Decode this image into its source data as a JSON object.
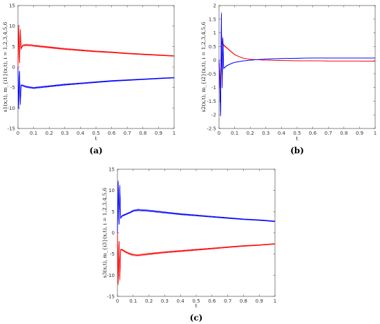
{
  "colors": {
    "series1": "#ff0000",
    "series2": "#0000ff",
    "axis": "#333333"
  },
  "chart_data": [
    {
      "type": "line",
      "caption": "(a)",
      "xlabel": "t",
      "ylabel": "s1(x,t), m_{i1}(x,t), i = 1,2,3,4,5,6",
      "xlim": [
        0,
        1
      ],
      "ylim": [
        -15,
        15
      ],
      "xticks": [
        "0",
        "0.1",
        "0.2",
        "0.3",
        "0.4",
        "0.5",
        "0.6",
        "0.7",
        "0.8",
        "0.9",
        "1"
      ],
      "yticks": [
        "-15",
        "-10",
        "-5",
        "0",
        "5",
        "10",
        "15"
      ],
      "xticks_val": [
        0,
        0.1,
        0.2,
        0.3,
        0.4,
        0.5,
        0.6,
        0.7,
        0.8,
        0.9,
        1
      ],
      "yticks_val": [
        -15,
        -10,
        -5,
        0,
        5,
        10,
        15
      ],
      "grid": false,
      "series": [
        {
          "color": "#ff0000",
          "x": [
            0,
            0.005,
            0.01,
            0.015,
            0.02,
            0.03,
            0.05,
            0.08,
            0.1,
            0.2,
            0.3,
            0.4,
            0.5,
            0.6,
            0.7,
            0.8,
            0.9,
            1.0
          ],
          "y": [
            0,
            10,
            1,
            9,
            4.5,
            5.2,
            5.4,
            5.3,
            5.2,
            4.8,
            4.4,
            4.1,
            3.8,
            3.6,
            3.3,
            3.1,
            2.9,
            2.7
          ]
        },
        {
          "color": "#0000ff",
          "x": [
            0,
            0.005,
            0.01,
            0.015,
            0.02,
            0.03,
            0.05,
            0.08,
            0.1,
            0.2,
            0.3,
            0.4,
            0.5,
            0.6,
            0.7,
            0.8,
            0.9,
            1.0
          ],
          "y": [
            0,
            -10,
            -1,
            -9,
            -4.5,
            -4.5,
            -4.8,
            -5.0,
            -5.1,
            -4.7,
            -4.3,
            -4.0,
            -3.7,
            -3.4,
            -3.2,
            -3.0,
            -2.8,
            -2.6
          ]
        }
      ]
    },
    {
      "type": "line",
      "caption": "(b)",
      "xlabel": "t",
      "ylabel": "s2(x,t), m_{i2}(x,t), i = 1,2,3,4,5,6",
      "xlim": [
        0,
        1
      ],
      "ylim": [
        -2.5,
        2
      ],
      "xticks": [
        "0",
        "0.1",
        "0.2",
        "0.3",
        "0.4",
        "0.5",
        "0.6",
        "0.7",
        "0.8",
        "0.9",
        "1"
      ],
      "yticks": [
        "-2.5",
        "-2",
        "-1.5",
        "-1",
        "-0.5",
        "0",
        "0.5",
        "1",
        "1.5",
        "2"
      ],
      "xticks_val": [
        0,
        0.1,
        0.2,
        0.3,
        0.4,
        0.5,
        0.6,
        0.7,
        0.8,
        0.9,
        1
      ],
      "yticks_val": [
        -2.5,
        -2,
        -1.5,
        -1,
        -0.5,
        0,
        0.5,
        1,
        1.5,
        2
      ],
      "grid": false,
      "series": [
        {
          "color": "#ff0000",
          "x": [
            0,
            0.01,
            0.015,
            0.02,
            0.03,
            0.05,
            0.08,
            0.1,
            0.15,
            0.2,
            0.3,
            0.4,
            0.5,
            0.6,
            0.7,
            0.8,
            0.9,
            1.0
          ],
          "y": [
            0,
            -1.0,
            1.0,
            0.6,
            0.55,
            0.45,
            0.3,
            0.2,
            0.08,
            0.03,
            0.0,
            -0.01,
            -0.02,
            -0.02,
            -0.03,
            -0.03,
            -0.03,
            -0.04
          ]
        },
        {
          "color": "#0000ff",
          "x": [
            0,
            0.01,
            0.015,
            0.02,
            0.025,
            0.03,
            0.05,
            0.08,
            0.1,
            0.15,
            0.2,
            0.3,
            0.4,
            0.5,
            0.6,
            0.7,
            0.8,
            0.9,
            1.0
          ],
          "y": [
            0,
            -2.0,
            1.7,
            -1.0,
            0.8,
            -0.3,
            -0.2,
            -0.12,
            -0.08,
            -0.03,
            0.0,
            0.04,
            0.06,
            0.07,
            0.08,
            0.08,
            0.08,
            0.08,
            0.08
          ]
        }
      ]
    },
    {
      "type": "line",
      "caption": "(c)",
      "xlabel": "t",
      "ylabel": "s3(x,t), m_{i3}(x,t), i = 1,2,3,4,5,6",
      "xlim": [
        0,
        1
      ],
      "ylim": [
        -15,
        15
      ],
      "xticks": [
        "0",
        "0.1",
        "0.2",
        "0.3",
        "0.4",
        "0.5",
        "0.6",
        "0.7",
        "0.8",
        "0.9",
        "1"
      ],
      "yticks": [
        "-15",
        "-10",
        "-5",
        "0",
        "5",
        "10",
        "15"
      ],
      "xticks_val": [
        0,
        0.1,
        0.2,
        0.3,
        0.4,
        0.5,
        0.6,
        0.7,
        0.8,
        0.9,
        1
      ],
      "yticks_val": [
        -15,
        -10,
        -5,
        0,
        5,
        10,
        15
      ],
      "grid": false,
      "series": [
        {
          "color": "#0000ff",
          "x": [
            0,
            0.005,
            0.01,
            0.015,
            0.02,
            0.03,
            0.05,
            0.08,
            0.1,
            0.13,
            0.2,
            0.3,
            0.4,
            0.5,
            0.6,
            0.7,
            0.8,
            0.9,
            1.0
          ],
          "y": [
            0,
            12,
            2,
            11,
            3.5,
            4.0,
            4.3,
            4.8,
            5.2,
            5.4,
            5.2,
            4.8,
            4.4,
            4.1,
            3.8,
            3.5,
            3.2,
            3.0,
            2.7
          ]
        },
        {
          "color": "#ff0000",
          "x": [
            0,
            0.005,
            0.01,
            0.015,
            0.02,
            0.03,
            0.05,
            0.08,
            0.1,
            0.13,
            0.2,
            0.3,
            0.4,
            0.5,
            0.6,
            0.7,
            0.8,
            0.9,
            1.0
          ],
          "y": [
            0,
            -12,
            -2,
            -11,
            -4.0,
            -4.0,
            -4.5,
            -5.0,
            -5.2,
            -5.3,
            -5.0,
            -4.6,
            -4.3,
            -4.0,
            -3.7,
            -3.4,
            -3.1,
            -2.9,
            -2.6
          ]
        }
      ]
    }
  ]
}
